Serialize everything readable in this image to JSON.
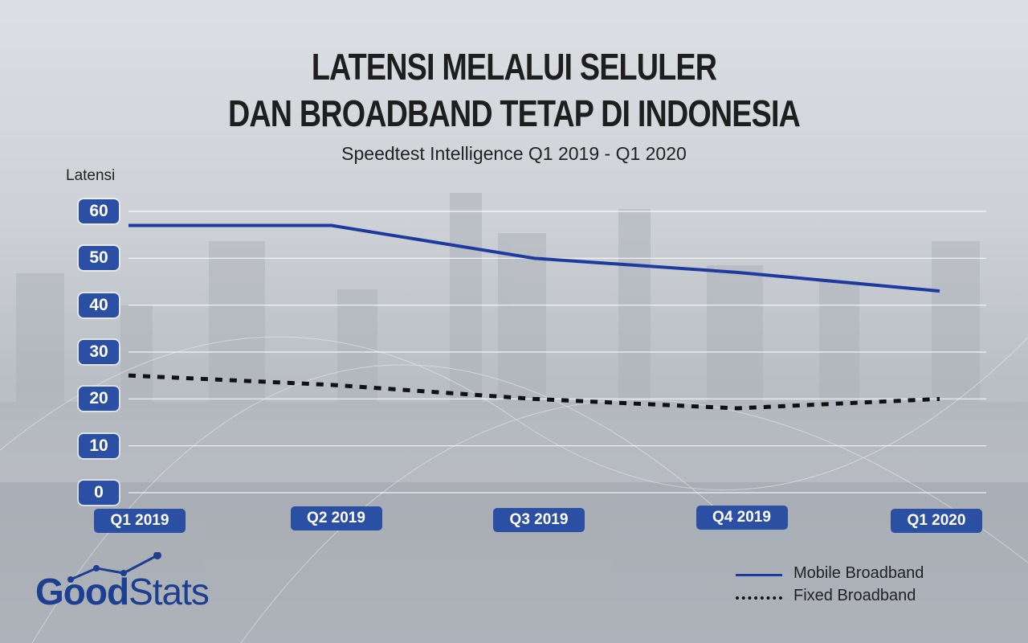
{
  "title_line1": "LATENSI MELALUI SELULER",
  "title_line2": "DAN BROADBAND TETAP DI INDONESIA",
  "subtitle": "Speedtest Intelligence Q1 2019 - Q1 2020",
  "brand": {
    "part1": "Good",
    "part2": "Stats"
  },
  "colors": {
    "mobile": "#1d3a9e",
    "fixed": "#111111",
    "tick_bg": "#2b4fa3",
    "brand": "#1d3f8f"
  },
  "chart_data": {
    "type": "line",
    "ylabel": "Latensi",
    "xlabel": "",
    "ylim": [
      0,
      60
    ],
    "yticks": [
      "60",
      "50",
      "40",
      "30",
      "20",
      "10",
      "0"
    ],
    "categories": [
      "Q1 2019",
      "Q2 2019",
      "Q3 2019",
      "Q4 2019",
      "Q1 2020"
    ],
    "grid": true,
    "legend_position": "bottom-right",
    "series": [
      {
        "name": "Mobile Broadband",
        "style": "solid",
        "values": [
          57,
          57,
          50,
          47,
          43
        ]
      },
      {
        "name": "Fixed Broadband",
        "style": "dotted",
        "values": [
          25,
          23,
          20,
          18,
          20
        ]
      }
    ]
  }
}
